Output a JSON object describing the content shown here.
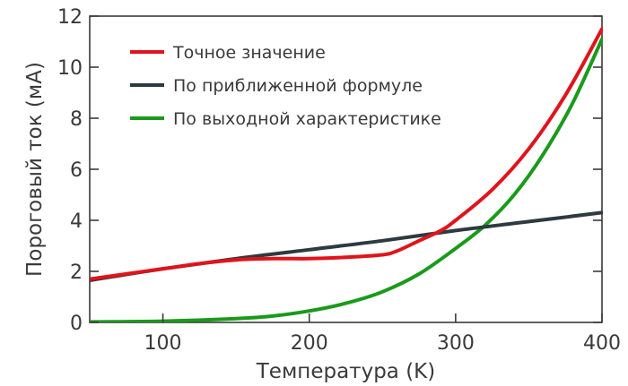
{
  "chart_data": {
    "type": "line",
    "title": "",
    "xlabel": "Температура (K)",
    "ylabel": "Пороговый ток (мА)",
    "xlim": [
      50,
      400
    ],
    "ylim": [
      0,
      12
    ],
    "xticks": [
      100,
      200,
      300,
      400
    ],
    "yticks": [
      0,
      2,
      4,
      6,
      8,
      10,
      12
    ],
    "grid": false,
    "legend_position": "top-left",
    "series": [
      {
        "name": "Точное значение",
        "color": "#e0141b",
        "x": [
          50,
          75,
          100,
          125,
          150,
          175,
          200,
          225,
          250,
          260,
          275,
          290,
          300,
          325,
          350,
          375,
          400
        ],
        "y": [
          1.7,
          1.9,
          2.1,
          2.3,
          2.45,
          2.5,
          2.5,
          2.55,
          2.65,
          2.8,
          3.2,
          3.6,
          4.0,
          5.2,
          6.8,
          8.9,
          11.5
        ]
      },
      {
        "name": "По приближенной формуле",
        "color": "#2d3a40",
        "x": [
          50,
          100,
          150,
          200,
          250,
          300,
          350,
          400
        ],
        "y": [
          1.65,
          2.1,
          2.5,
          2.85,
          3.2,
          3.6,
          3.95,
          4.3
        ]
      },
      {
        "name": "По выходной характеристике",
        "color": "#1a9a1a",
        "x": [
          50,
          100,
          150,
          175,
          200,
          225,
          250,
          275,
          300,
          320,
          340,
          360,
          380,
          400
        ],
        "y": [
          0.02,
          0.05,
          0.15,
          0.25,
          0.45,
          0.75,
          1.2,
          1.9,
          2.9,
          3.8,
          5.0,
          6.6,
          8.6,
          11.1
        ]
      }
    ]
  }
}
